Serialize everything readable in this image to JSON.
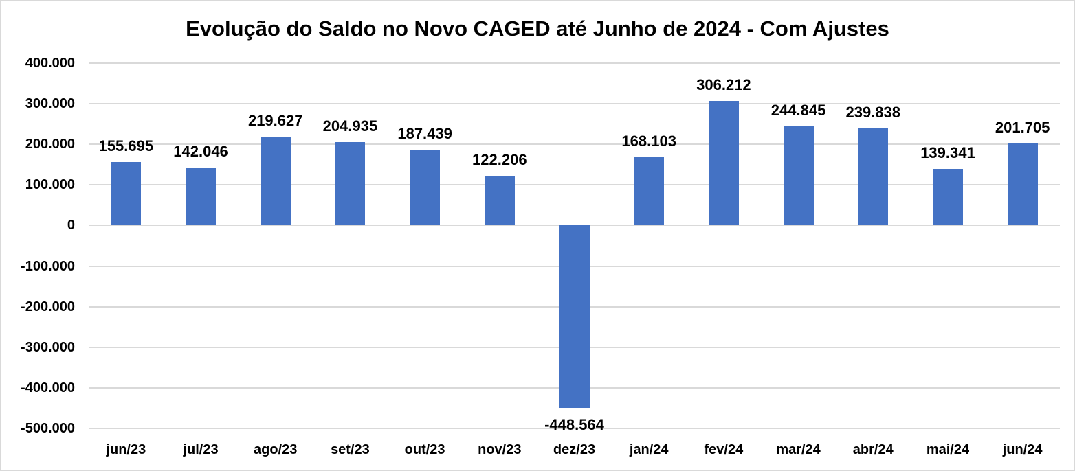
{
  "chart_data": {
    "type": "bar",
    "title": "Evolução do Saldo no Novo CAGED até Junho de 2024 - Com Ajustes",
    "categories": [
      "jun/23",
      "jul/23",
      "ago/23",
      "set/23",
      "out/23",
      "nov/23",
      "dez/23",
      "jan/24",
      "fev/24",
      "mar/24",
      "abr/24",
      "mai/24",
      "jun/24"
    ],
    "values": [
      155695,
      142046,
      219627,
      204935,
      187439,
      122206,
      -448564,
      168103,
      306212,
      244845,
      239838,
      139341,
      201705
    ],
    "data_labels": [
      "155.695",
      "142.046",
      "219.627",
      "204.935",
      "187.439",
      "122.206",
      "-448.564",
      "168.103",
      "306.212",
      "244.845",
      "239.838",
      "139.341",
      "201.705"
    ],
    "ylabel": "",
    "xlabel": "",
    "ylim": [
      -500000,
      400000
    ],
    "ytick_step": 100000,
    "ytick_labels": [
      "400.000",
      "300.000",
      "200.000",
      "100.000",
      "0",
      "-100.000",
      "-200.000",
      "-300.000",
      "-400.000",
      "-500.000"
    ],
    "grid": true,
    "legend": "none",
    "colors": {
      "bar": "#4472C4",
      "gridline": "#D9D9D9",
      "border": "#D9D9D9",
      "text": "#000000",
      "background": "#FFFFFF"
    }
  }
}
